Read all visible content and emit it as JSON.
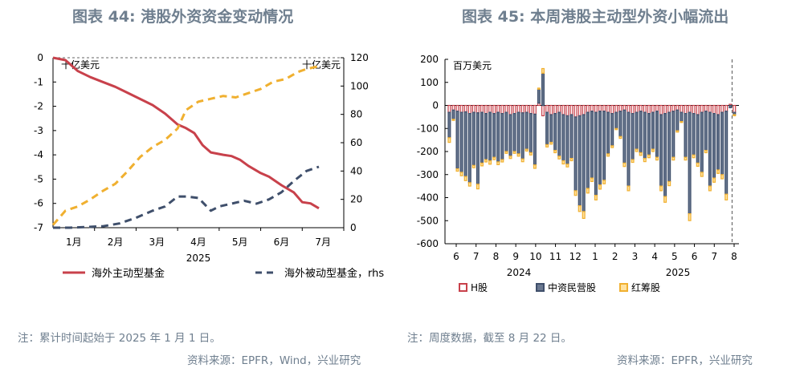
{
  "left": {
    "title": "图表 44: 港股外资资金变动情况",
    "note": "注：累计时间起始于 2025 年 1 月 1 日。",
    "source": "资料来源：EPFR，Wind，兴业研究"
  },
  "right": {
    "title": "图表 45: 本周港股主动型外资小幅流出",
    "note": "注：周度数据，截至 8 月 22 日。",
    "source": "资料来源：EPFR，兴业研究"
  },
  "colors": {
    "red": "#c8414b",
    "navy": "#3f4f6b",
    "gold": "#f0b030",
    "axis": "#000000"
  },
  "chart_data": [
    {
      "type": "line",
      "units_left": "十亿美元",
      "units_right": "十亿美元",
      "year_label": "2025",
      "x_categories": [
        "1月",
        "2月",
        "3月",
        "4月",
        "5月",
        "6月",
        "7月"
      ],
      "ylim_left": [
        -7,
        0
      ],
      "yticks_left": [
        "0",
        "-1",
        "-2",
        "-3",
        "-4",
        "-5",
        "-6",
        "-7"
      ],
      "ylim_right": [
        0,
        120
      ],
      "yticks_right": [
        "120",
        "100",
        "80",
        "60",
        "40",
        "20",
        "0"
      ],
      "series": [
        {
          "name": "海外主动型基金",
          "axis": "left",
          "color": "#c8414b",
          "dash": "solid",
          "x": [
            0,
            0.3,
            0.6,
            0.9,
            1.2,
            1.5,
            1.8,
            2.1,
            2.4,
            2.7,
            3.0,
            3.2,
            3.4,
            3.6,
            3.8,
            4.1,
            4.3,
            4.5,
            4.7,
            5.0,
            5.2,
            5.5,
            5.8,
            6.0,
            6.2,
            6.4
          ],
          "y": [
            0,
            -0.1,
            -0.55,
            -0.8,
            -1.0,
            -1.2,
            -1.45,
            -1.7,
            -1.95,
            -2.3,
            -2.75,
            -2.9,
            -3.1,
            -3.6,
            -3.9,
            -4.0,
            -4.05,
            -4.2,
            -4.45,
            -4.75,
            -4.9,
            -5.25,
            -5.55,
            -5.95,
            -6.0,
            -6.2
          ]
        },
        {
          "name": "海外被动型基金，rhs",
          "axis": "right",
          "color": "#3f4f6b",
          "dash": "dash",
          "x": [
            0,
            0.4,
            0.8,
            1.2,
            1.6,
            2.0,
            2.4,
            2.7,
            3.0,
            3.2,
            3.5,
            3.8,
            4.0,
            4.3,
            4.6,
            4.9,
            5.2,
            5.5,
            5.8,
            6.1,
            6.4
          ],
          "y": [
            0,
            0,
            0.5,
            1,
            3,
            7,
            12,
            15,
            22,
            22,
            21,
            12,
            15,
            17,
            19,
            17,
            20,
            25,
            33,
            40,
            43
          ]
        },
        {
          "name": "港股通累计净流入，rhs",
          "axis": "right",
          "color": "#f0b030",
          "dash": "dash",
          "x": [
            0,
            0.3,
            0.6,
            0.9,
            1.2,
            1.5,
            1.8,
            2.1,
            2.4,
            2.7,
            3.0,
            3.2,
            3.5,
            3.8,
            4.1,
            4.4,
            4.7,
            5.0,
            5.3,
            5.6,
            5.9,
            6.1,
            6.4
          ],
          "y": [
            2,
            12,
            15,
            20,
            26,
            31,
            40,
            50,
            57,
            62,
            70,
            83,
            89,
            91,
            93,
            92,
            95,
            98,
            103,
            105,
            110,
            112,
            114
          ]
        }
      ]
    },
    {
      "type": "bar",
      "stacked": true,
      "units": "百万美元",
      "ylim": [
        -600,
        200
      ],
      "yticks": [
        "200",
        "100",
        "0",
        "-100",
        "-200",
        "-300",
        "-400",
        "-500",
        "-600"
      ],
      "x_month_ticks": [
        "6",
        "7",
        "8",
        "9",
        "10",
        "11",
        "12",
        "1",
        "2",
        "3",
        "4",
        "5",
        "6",
        "7",
        "8"
      ],
      "year_labels": [
        "2024",
        "2025"
      ],
      "series_names": [
        "H股",
        "中资民营股",
        "红筹股"
      ],
      "h_share": [
        -30,
        -20,
        -25,
        -30,
        -28,
        -35,
        -30,
        -32,
        -30,
        -35,
        -30,
        -35,
        -30,
        -35,
        -30,
        -40,
        -35,
        -30,
        -32,
        -30,
        -35,
        -38,
        10,
        -45,
        -30,
        -40,
        -35,
        -30,
        -40,
        -45,
        -40,
        -50,
        -45,
        -40,
        -30,
        -25,
        -30,
        -25,
        -25,
        -30,
        -35,
        -30,
        -25,
        -20,
        -30,
        -35,
        -30,
        -25,
        -30,
        -35,
        -30,
        -25,
        -40,
        -35,
        -30,
        -25,
        -20,
        -30,
        -35,
        -30,
        -35,
        -40,
        -30,
        -25,
        -30,
        -35,
        -40,
        -30,
        -25,
        5,
        -30
      ],
      "mainland_private": [
        -110,
        -40,
        -250,
        -260,
        -280,
        -300,
        -230,
        -310,
        -220,
        -200,
        -210,
        -190,
        -215,
        -200,
        -170,
        -180,
        -165,
        -180,
        -200,
        -160,
        -170,
        -220,
        60,
        140,
        -140,
        -120,
        -160,
        -190,
        -200,
        -210,
        -190,
        -320,
        -390,
        -420,
        -330,
        -290,
        -360,
        -320,
        -300,
        -180,
        -140,
        -70,
        -110,
        -230,
        -320,
        -200,
        -160,
        -180,
        -200,
        -180,
        -160,
        -200,
        -310,
        -360,
        -300,
        -200,
        -90,
        -40,
        -190,
        -440,
        -180,
        -210,
        -260,
        -170,
        -320,
        -280,
        -240,
        -270,
        -360,
        -10,
        -10
      ],
      "red_chip": [
        -20,
        -5,
        -10,
        -15,
        -18,
        -15,
        -10,
        -20,
        -12,
        -10,
        -15,
        -10,
        -12,
        -10,
        -8,
        -10,
        -8,
        -10,
        -12,
        -8,
        -10,
        -15,
        5,
        20,
        -10,
        -8,
        -10,
        -12,
        -14,
        -12,
        -10,
        -20,
        -25,
        -30,
        -20,
        -15,
        -20,
        -18,
        -15,
        -10,
        -8,
        -5,
        -8,
        -15,
        -20,
        -12,
        -10,
        -12,
        -14,
        -12,
        -10,
        -12,
        -20,
        -25,
        -18,
        -12,
        -6,
        -4,
        -12,
        -30,
        -12,
        -14,
        -18,
        -10,
        -20,
        -18,
        -15,
        -18,
        -25,
        0,
        -5
      ]
    }
  ]
}
